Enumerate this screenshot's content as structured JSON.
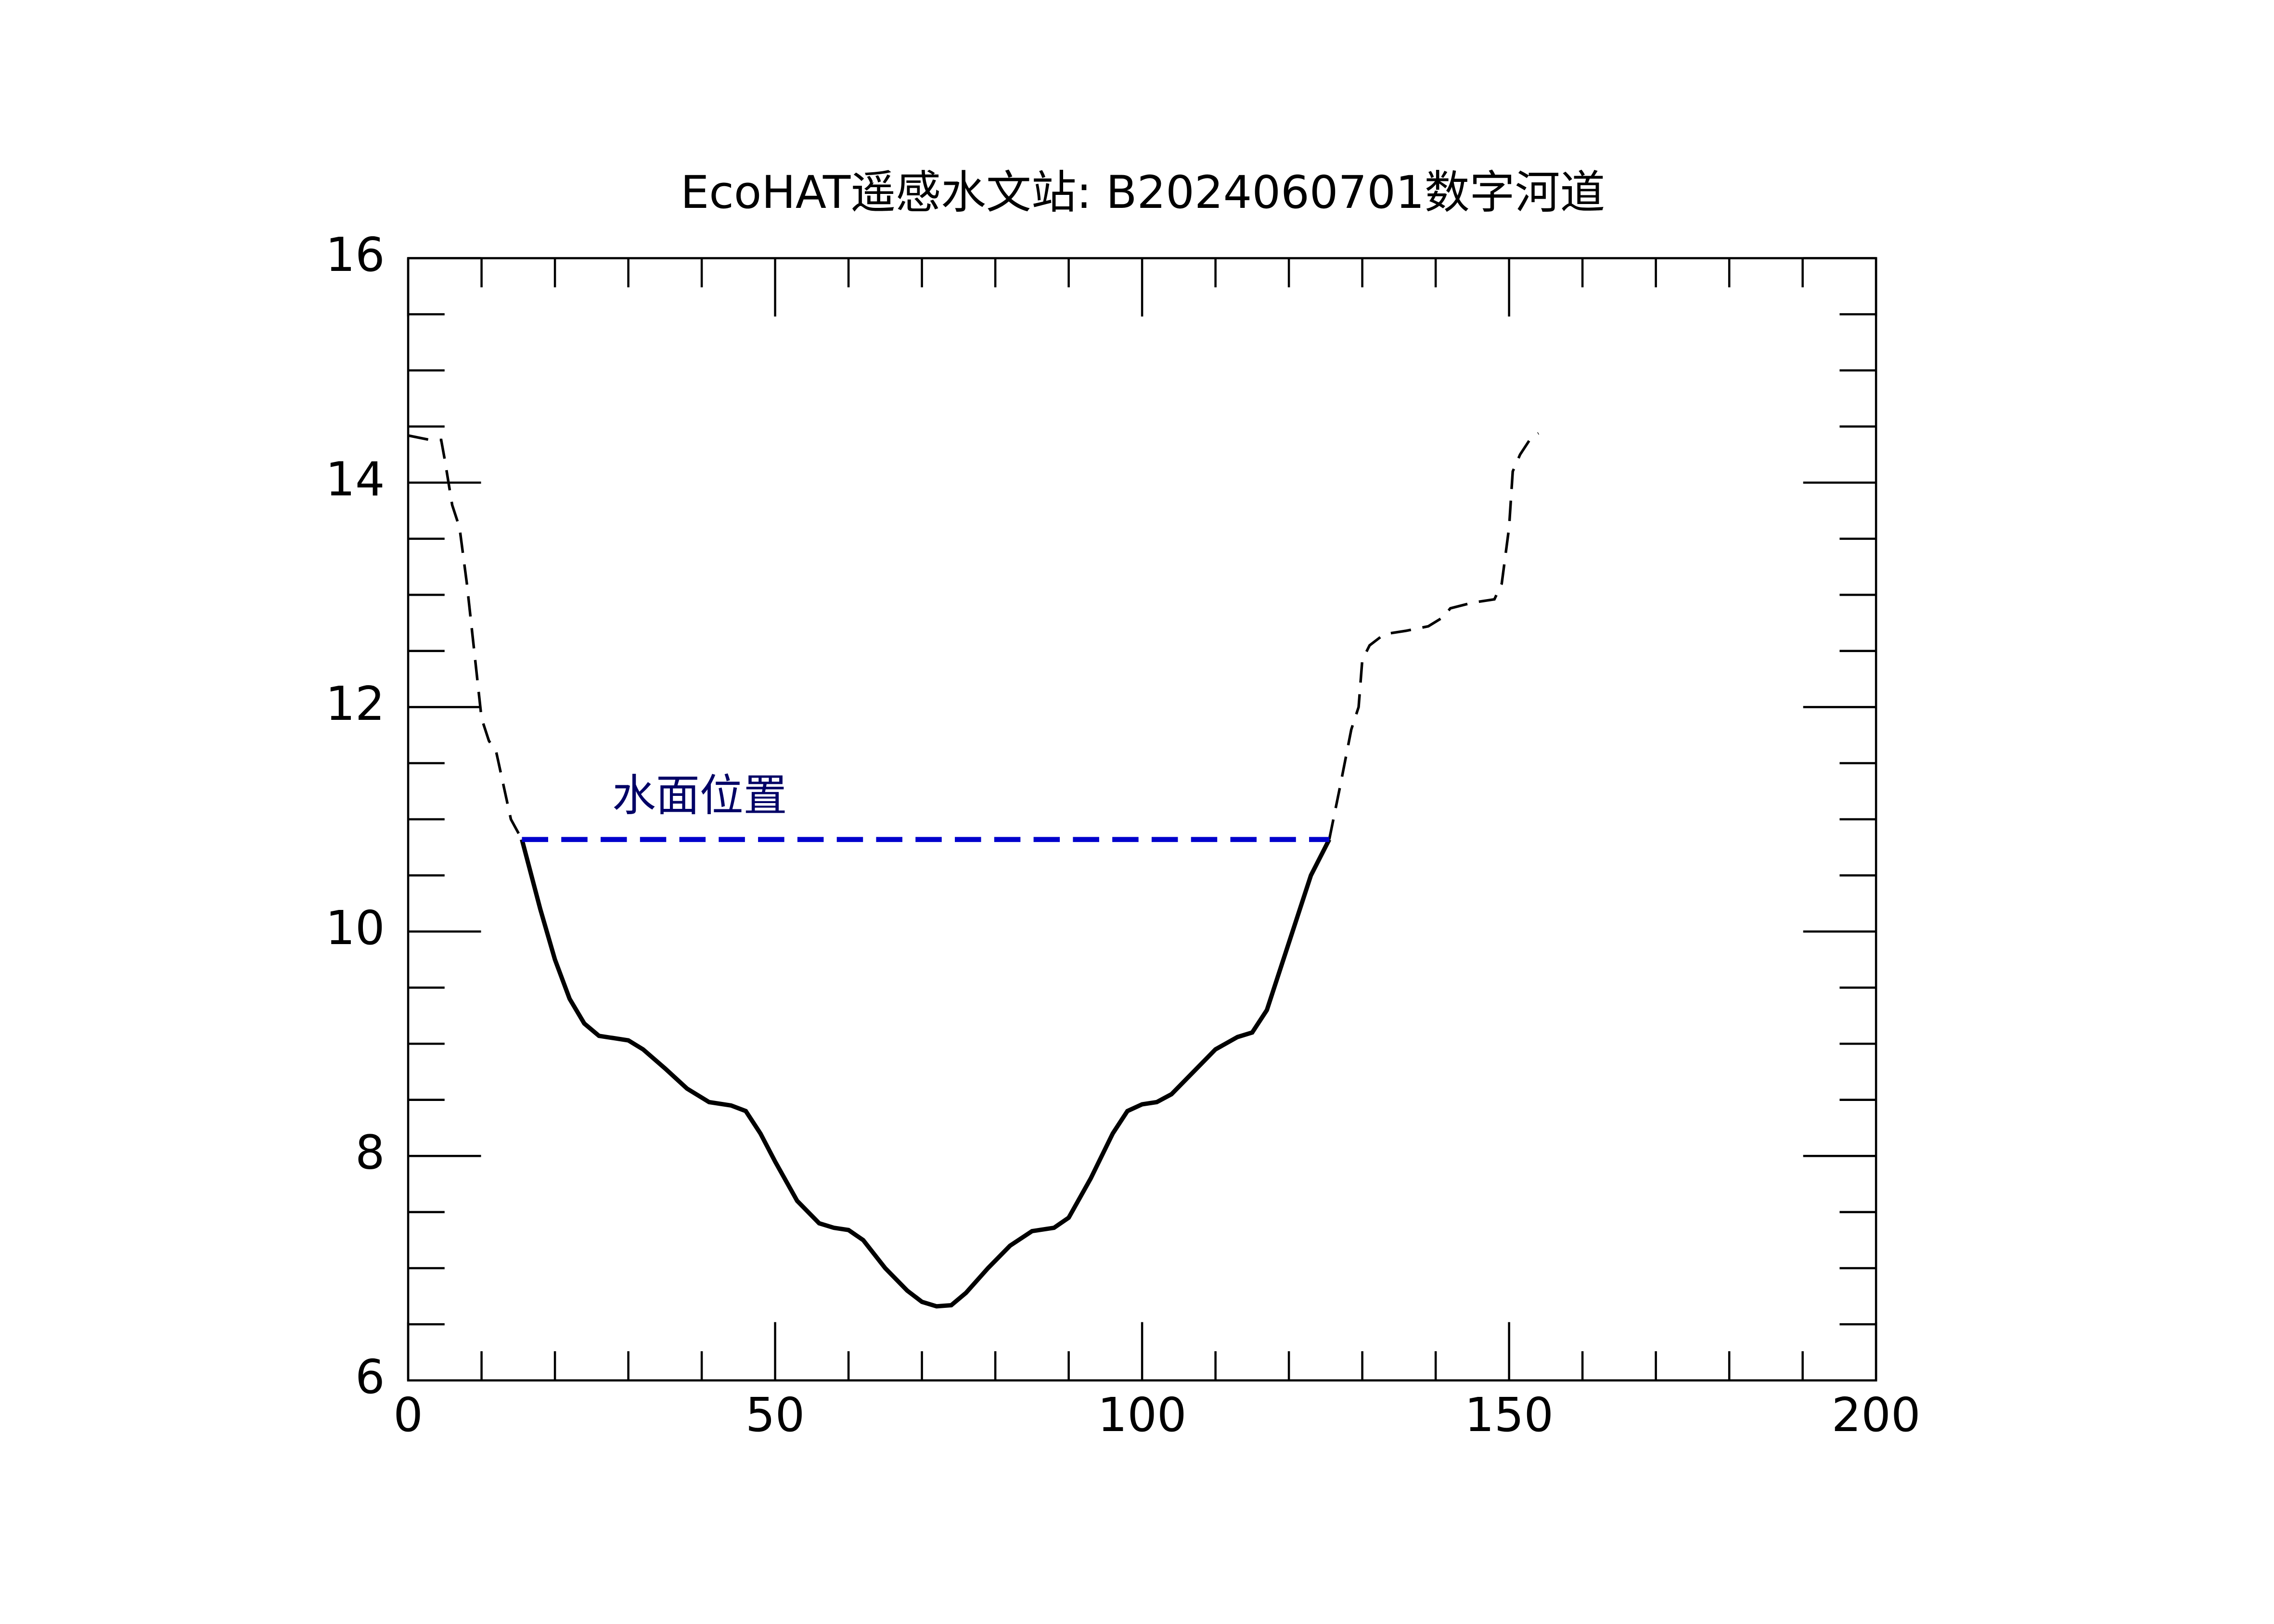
{
  "chart_data": {
    "type": "line",
    "title": "EcoHAT遥感水文站: B2024060701数字河道",
    "annotation": "水面位置",
    "xlim": [
      0,
      200
    ],
    "ylim": [
      6,
      16
    ],
    "xticks": [
      0,
      50,
      100,
      150,
      200
    ],
    "yticks": [
      6,
      8,
      10,
      12,
      14,
      16
    ],
    "xminor_ticks": [
      10,
      20,
      30,
      40,
      60,
      70,
      80,
      90,
      110,
      120,
      130,
      140,
      160,
      170,
      180,
      190
    ],
    "yminor_ticks": [
      6.5,
      7,
      7.5,
      8.5,
      9,
      9.5,
      10.5,
      11,
      11.5,
      12.5,
      13,
      13.5,
      14.5,
      15,
      15.5
    ],
    "series": [
      {
        "color": "#000000",
        "dash": true,
        "x": [
          0,
          1.5,
          3,
          4.5,
          5,
          6,
          7,
          8,
          9,
          10,
          11,
          12,
          13,
          14,
          15.5
        ],
        "values": [
          14.42,
          14.4,
          14.38,
          14.38,
          14.2,
          13.8,
          13.6,
          13.1,
          12.5,
          11.9,
          11.7,
          11.6,
          11.3,
          11.0,
          10.82
        ]
      },
      {
        "color": "#000000",
        "dash": false,
        "x": [
          15.5,
          18,
          20,
          22,
          24,
          26,
          28,
          30,
          32,
          35,
          38,
          41,
          44,
          46,
          48,
          50,
          53,
          56,
          58,
          60,
          62,
          65,
          68,
          70,
          72,
          74,
          76,
          79,
          82,
          85,
          88,
          90,
          93,
          96,
          98,
          100,
          102,
          104,
          107,
          110,
          113,
          115,
          117,
          119,
          121,
          123,
          125.5
        ],
        "values": [
          10.82,
          10.2,
          9.75,
          9.4,
          9.18,
          9.07,
          9.05,
          9.03,
          8.95,
          8.78,
          8.6,
          8.48,
          8.45,
          8.4,
          8.2,
          7.95,
          7.6,
          7.4,
          7.36,
          7.34,
          7.25,
          7.0,
          6.8,
          6.7,
          6.66,
          6.67,
          6.78,
          7.0,
          7.2,
          7.33,
          7.36,
          7.45,
          7.8,
          8.2,
          8.4,
          8.46,
          8.48,
          8.55,
          8.75,
          8.95,
          9.06,
          9.1,
          9.3,
          9.7,
          10.1,
          10.5,
          10.82
        ]
      },
      {
        "color": "#000000",
        "dash": true,
        "x": [
          125.5,
          127,
          128.5,
          129.5,
          130,
          131,
          133,
          136,
          139,
          141,
          142,
          145,
          148,
          149,
          150,
          150.5,
          151.5,
          153,
          154
        ],
        "values": [
          10.82,
          11.3,
          11.8,
          12.0,
          12.42,
          12.55,
          12.65,
          12.68,
          12.72,
          12.8,
          12.88,
          12.93,
          12.96,
          13.1,
          13.6,
          14.1,
          14.25,
          14.4,
          14.44
        ]
      },
      {
        "color": "#0000cc",
        "dash": true,
        "water": true,
        "x": [
          15.5,
          125.5
        ],
        "values": [
          10.82,
          10.82
        ]
      }
    ]
  }
}
